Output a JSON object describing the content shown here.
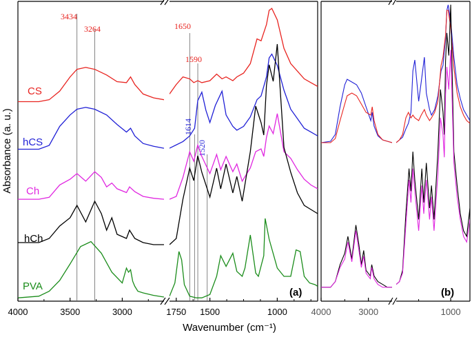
{
  "chart_data": [
    {
      "panel": "a",
      "panel_label": "(a)",
      "type": "line",
      "xlabel": "Wavenumber (cm⁻¹)",
      "ylabel": "Absorbance (a. u.)",
      "x_axis": "reversed, broken between 2600 and 1800",
      "xlim": [
        4000,
        700
      ],
      "xticks": [
        4000,
        3500,
        3000,
        1750,
        1500,
        1000
      ],
      "xtick_labels": [
        "4000",
        "3500",
        "3000",
        "1750",
        "1500",
        "1000"
      ],
      "yticks": "none",
      "grid": false,
      "legend": "none; series names printed beside each trace",
      "stacking": "vertically offset traces, top to bottom CS, hCS, Ch, hCh, PVA",
      "reference_lines": [
        {
          "x": 3434,
          "label": "3434",
          "color": "#e8231f"
        },
        {
          "x": 3264,
          "label": "3264",
          "color": "#e8231f"
        },
        {
          "x": 1650,
          "label": "1650",
          "color": "#e8231f"
        },
        {
          "x": 1614,
          "label": "1614",
          "color": "#1f1fd6"
        },
        {
          "x": 1590,
          "label": "1590",
          "color": "#e8231f"
        },
        {
          "x": 1520,
          "label": "1520",
          "color": "#1f1fd6"
        }
      ],
      "series": [
        {
          "name": "CS",
          "color": "#e8231f",
          "x": [
            4000,
            3800,
            3700,
            3600,
            3500,
            3434,
            3350,
            3264,
            3150,
            3050,
            2960,
            2920,
            2880,
            2800,
            2700,
            2600,
            1800,
            1750,
            1700,
            1650,
            1620,
            1590,
            1560,
            1500,
            1450,
            1410,
            1380,
            1330,
            1300,
            1250,
            1200,
            1150,
            1120,
            1080,
            1060,
            1040,
            1000,
            950,
            900,
            850,
            800,
            750,
            700
          ],
          "y": [
            0.04,
            0.04,
            0.06,
            0.15,
            0.3,
            0.38,
            0.4,
            0.38,
            0.32,
            0.25,
            0.24,
            0.3,
            0.22,
            0.12,
            0.08,
            0.06,
            0.12,
            0.22,
            0.3,
            0.28,
            0.24,
            0.26,
            0.24,
            0.26,
            0.33,
            0.28,
            0.3,
            0.26,
            0.3,
            0.34,
            0.44,
            0.7,
            0.68,
            0.85,
            1.0,
            1.02,
            0.9,
            0.6,
            0.44,
            0.36,
            0.28,
            0.24,
            0.2
          ]
        },
        {
          "name": "hCS",
          "color": "#1f1fd6",
          "x": [
            4000,
            3800,
            3700,
            3600,
            3500,
            3434,
            3350,
            3264,
            3150,
            3050,
            2960,
            2920,
            2880,
            2800,
            2700,
            2600,
            1800,
            1700,
            1650,
            1614,
            1590,
            1560,
            1530,
            1500,
            1460,
            1410,
            1380,
            1330,
            1300,
            1250,
            1200,
            1150,
            1120,
            1080,
            1060,
            1040,
            1000,
            950,
            900,
            850,
            800,
            750,
            700
          ],
          "y": [
            0.04,
            0.04,
            0.08,
            0.28,
            0.4,
            0.46,
            0.48,
            0.46,
            0.4,
            0.3,
            0.22,
            0.26,
            0.18,
            0.1,
            0.07,
            0.05,
            0.05,
            0.12,
            0.18,
            0.26,
            0.55,
            0.64,
            0.45,
            0.32,
            0.5,
            0.65,
            0.4,
            0.28,
            0.24,
            0.28,
            0.38,
            0.56,
            0.6,
            0.8,
            1.0,
            1.04,
            0.92,
            0.66,
            0.46,
            0.36,
            0.26,
            0.22,
            0.18
          ]
        },
        {
          "name": "Ch",
          "color": "#e026e0",
          "x": [
            4000,
            3800,
            3700,
            3600,
            3500,
            3434,
            3350,
            3264,
            3200,
            3150,
            3100,
            3050,
            2960,
            2930,
            2880,
            2800,
            2700,
            2600,
            1800,
            1750,
            1700,
            1650,
            1620,
            1590,
            1560,
            1500,
            1450,
            1420,
            1380,
            1330,
            1300,
            1260,
            1200,
            1160,
            1120,
            1100,
            1080,
            1060,
            1030,
            1000,
            950,
            900,
            850,
            800,
            750,
            700
          ],
          "y": [
            0.05,
            0.05,
            0.07,
            0.2,
            0.26,
            0.32,
            0.24,
            0.34,
            0.28,
            0.18,
            0.22,
            0.16,
            0.12,
            0.18,
            0.13,
            0.08,
            0.06,
            0.05,
            0.05,
            0.08,
            0.28,
            0.55,
            0.45,
            0.62,
            0.5,
            0.32,
            0.52,
            0.36,
            0.5,
            0.34,
            0.42,
            0.24,
            0.38,
            0.55,
            0.58,
            0.5,
            0.7,
            0.82,
            0.74,
            0.95,
            0.55,
            0.48,
            0.36,
            0.26,
            0.2,
            0.16
          ]
        },
        {
          "name": "hCh",
          "color": "#000000",
          "x": [
            4000,
            3800,
            3700,
            3600,
            3500,
            3434,
            3350,
            3264,
            3200,
            3150,
            3100,
            3050,
            2960,
            2930,
            2880,
            2800,
            2700,
            2600,
            1800,
            1750,
            1700,
            1650,
            1620,
            1590,
            1560,
            1500,
            1450,
            1420,
            1380,
            1330,
            1300,
            1260,
            1200,
            1160,
            1120,
            1100,
            1080,
            1060,
            1030,
            1000,
            950,
            900,
            850,
            800,
            750,
            700
          ],
          "y": [
            0.04,
            0.04,
            0.06,
            0.12,
            0.16,
            0.22,
            0.14,
            0.24,
            0.18,
            0.1,
            0.16,
            0.08,
            0.06,
            0.1,
            0.06,
            0.04,
            0.03,
            0.03,
            0.03,
            0.06,
            0.25,
            0.4,
            0.34,
            0.46,
            0.38,
            0.26,
            0.4,
            0.3,
            0.42,
            0.28,
            0.36,
            0.24,
            0.48,
            0.7,
            0.62,
            0.56,
            0.8,
            0.9,
            0.82,
            1.0,
            0.5,
            0.38,
            0.28,
            0.22,
            0.2,
            0.18
          ]
        },
        {
          "name": "PVA",
          "color": "#1a8c1a",
          "x": [
            4000,
            3800,
            3700,
            3600,
            3500,
            3400,
            3300,
            3200,
            3100,
            3000,
            2960,
            2940,
            2920,
            2900,
            2880,
            2850,
            2800,
            2700,
            2600,
            1800,
            1760,
            1730,
            1710,
            1690,
            1650,
            1600,
            1560,
            1500,
            1450,
            1420,
            1380,
            1330,
            1300,
            1260,
            1240,
            1200,
            1160,
            1140,
            1100,
            1090,
            1060,
            1000,
            950,
            900,
            860,
            830,
            800,
            760,
            720,
            700
          ],
          "y": [
            0.04,
            0.06,
            0.12,
            0.25,
            0.45,
            0.66,
            0.72,
            0.58,
            0.35,
            0.22,
            0.4,
            0.35,
            0.38,
            0.24,
            0.18,
            0.12,
            0.1,
            0.07,
            0.05,
            0.06,
            0.22,
            0.6,
            0.5,
            0.2,
            0.06,
            0.04,
            0.04,
            0.08,
            0.3,
            0.55,
            0.42,
            0.58,
            0.36,
            0.3,
            0.4,
            0.8,
            0.34,
            0.3,
            0.55,
            1.0,
            0.75,
            0.4,
            0.3,
            0.3,
            0.62,
            0.6,
            0.3,
            0.22,
            0.2,
            0.18
          ]
        }
      ]
    },
    {
      "panel": "b",
      "panel_label": "(b)",
      "type": "line",
      "x_axis": "reversed, broken between 2500 and 1850",
      "xlim": [
        4000,
        700
      ],
      "xticks": [
        4000,
        3000,
        1000
      ],
      "xtick_labels": [
        "4000",
        "3000",
        "1000"
      ],
      "grid": false,
      "legend": "none",
      "groups": [
        {
          "position": "top",
          "series": [
            {
              "color": "#1f1fd6",
              "x": [
                4000,
                3800,
                3700,
                3600,
                3500,
                3450,
                3350,
                3250,
                3150,
                3050,
                2950,
                2920,
                2880,
                2800,
                2700,
                2600,
                2500,
                1850,
                1800,
                1750,
                1700,
                1660,
                1620,
                1590,
                1560,
                1500,
                1460,
                1410,
                1380,
                1330,
                1300,
                1250,
                1200,
                1150,
                1120,
                1080,
                1060,
                1040,
                1000,
                950,
                900,
                850,
                800,
                750,
                700
              ],
              "y": [
                0.04,
                0.05,
                0.1,
                0.3,
                0.46,
                0.5,
                0.48,
                0.46,
                0.4,
                0.3,
                0.2,
                0.26,
                0.16,
                0.09,
                0.06,
                0.05,
                0.04,
                0.04,
                0.06,
                0.08,
                0.14,
                0.18,
                0.26,
                0.56,
                0.64,
                0.34,
                0.48,
                0.66,
                0.4,
                0.28,
                0.24,
                0.28,
                0.38,
                0.56,
                0.6,
                0.8,
                1.0,
                1.04,
                0.92,
                0.66,
                0.46,
                0.36,
                0.28,
                0.24,
                0.2
              ]
            },
            {
              "color": "#e8231f",
              "x": [
                4000,
                3800,
                3700,
                3600,
                3500,
                3450,
                3350,
                3250,
                3150,
                3050,
                2950,
                2920,
                2880,
                2800,
                2700,
                2600,
                2500,
                1850,
                1800,
                1750,
                1700,
                1660,
                1620,
                1590,
                1560,
                1500,
                1460,
                1410,
                1380,
                1330,
                1300,
                1250,
                1200,
                1150,
                1120,
                1080,
                1060,
                1040,
                1000,
                950,
                900,
                850,
                800,
                750,
                700
              ],
              "y": [
                0.04,
                0.04,
                0.07,
                0.2,
                0.32,
                0.38,
                0.4,
                0.38,
                0.32,
                0.26,
                0.24,
                0.3,
                0.2,
                0.1,
                0.06,
                0.05,
                0.04,
                0.04,
                0.06,
                0.1,
                0.22,
                0.26,
                0.22,
                0.24,
                0.22,
                0.2,
                0.24,
                0.28,
                0.24,
                0.2,
                0.22,
                0.26,
                0.34,
                0.6,
                0.66,
                0.82,
                1.0,
                1.0,
                0.88,
                0.58,
                0.4,
                0.3,
                0.24,
                0.2,
                0.18
              ]
            }
          ]
        },
        {
          "position": "bottom",
          "series": [
            {
              "color": "#000000",
              "x": [
                4000,
                3800,
                3700,
                3600,
                3500,
                3434,
                3350,
                3264,
                3200,
                3150,
                3100,
                3050,
                2960,
                2930,
                2880,
                2800,
                2700,
                2600,
                2500,
                1850,
                1800,
                1750,
                1700,
                1650,
                1620,
                1590,
                1560,
                1500,
                1450,
                1420,
                1380,
                1330,
                1300,
                1260,
                1200,
                1160,
                1120,
                1100,
                1080,
                1060,
                1030,
                1000,
                950,
                900,
                850,
                800,
                750,
                700
              ],
              "y": [
                0.02,
                0.02,
                0.04,
                0.1,
                0.14,
                0.2,
                0.12,
                0.24,
                0.17,
                0.1,
                0.15,
                0.08,
                0.06,
                0.1,
                0.06,
                0.04,
                0.03,
                0.02,
                0.02,
                0.03,
                0.04,
                0.08,
                0.28,
                0.44,
                0.36,
                0.5,
                0.4,
                0.26,
                0.44,
                0.32,
                0.46,
                0.3,
                0.38,
                0.26,
                0.5,
                0.72,
                0.64,
                0.56,
                0.82,
                0.92,
                0.84,
                1.02,
                0.5,
                0.38,
                0.28,
                0.22,
                0.2,
                0.3
              ]
            },
            {
              "color": "#e026e0",
              "x": [
                4000,
                3800,
                3700,
                3600,
                3500,
                3434,
                3350,
                3264,
                3200,
                3150,
                3100,
                3050,
                2960,
                2930,
                2880,
                2800,
                2700,
                2600,
                2500,
                1850,
                1800,
                1750,
                1700,
                1650,
                1620,
                1590,
                1560,
                1500,
                1450,
                1420,
                1380,
                1330,
                1300,
                1260,
                1200,
                1160,
                1120,
                1100,
                1080,
                1060,
                1030,
                1000,
                950,
                900,
                850,
                800,
                750,
                700
              ],
              "y": [
                0.02,
                0.02,
                0.04,
                0.09,
                0.12,
                0.18,
                0.11,
                0.22,
                0.15,
                0.09,
                0.13,
                0.07,
                0.05,
                0.09,
                0.05,
                0.03,
                0.02,
                0.02,
                0.02,
                0.03,
                0.04,
                0.07,
                0.24,
                0.4,
                0.32,
                0.44,
                0.36,
                0.22,
                0.38,
                0.28,
                0.4,
                0.26,
                0.34,
                0.22,
                0.42,
                0.62,
                0.56,
                0.48,
                0.7,
                0.8,
                0.72,
                0.86,
                0.46,
                0.34,
                0.26,
                0.2,
                0.18,
                0.26
              ]
            }
          ]
        }
      ]
    }
  ]
}
